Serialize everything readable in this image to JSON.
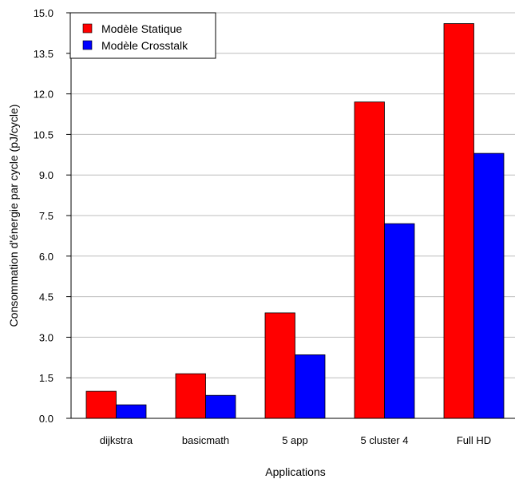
{
  "chart_data": {
    "type": "bar",
    "title": "",
    "xlabel": "Applications",
    "ylabel": "Consommation d'énergie par cycle (pJ/cycle)",
    "categories": [
      "dijkstra",
      "basicmath",
      "5 app",
      "5 cluster 4",
      "Full HD"
    ],
    "series": [
      {
        "name": "Modèle Statique",
        "color": "#ff0000",
        "values": [
          1.0,
          1.65,
          3.9,
          11.7,
          14.6
        ]
      },
      {
        "name": "Modèle Crosstalk",
        "color": "#0000ff",
        "values": [
          0.5,
          0.85,
          2.35,
          7.2,
          9.8
        ]
      }
    ],
    "ylim": [
      0,
      15
    ],
    "yticks": [
      "0.0",
      "1.5",
      "3.0",
      "4.5",
      "6.0",
      "7.5",
      "9.0",
      "10.5",
      "12.0",
      "13.5",
      "15.0"
    ],
    "grid": true,
    "legend_position": "top-left"
  }
}
